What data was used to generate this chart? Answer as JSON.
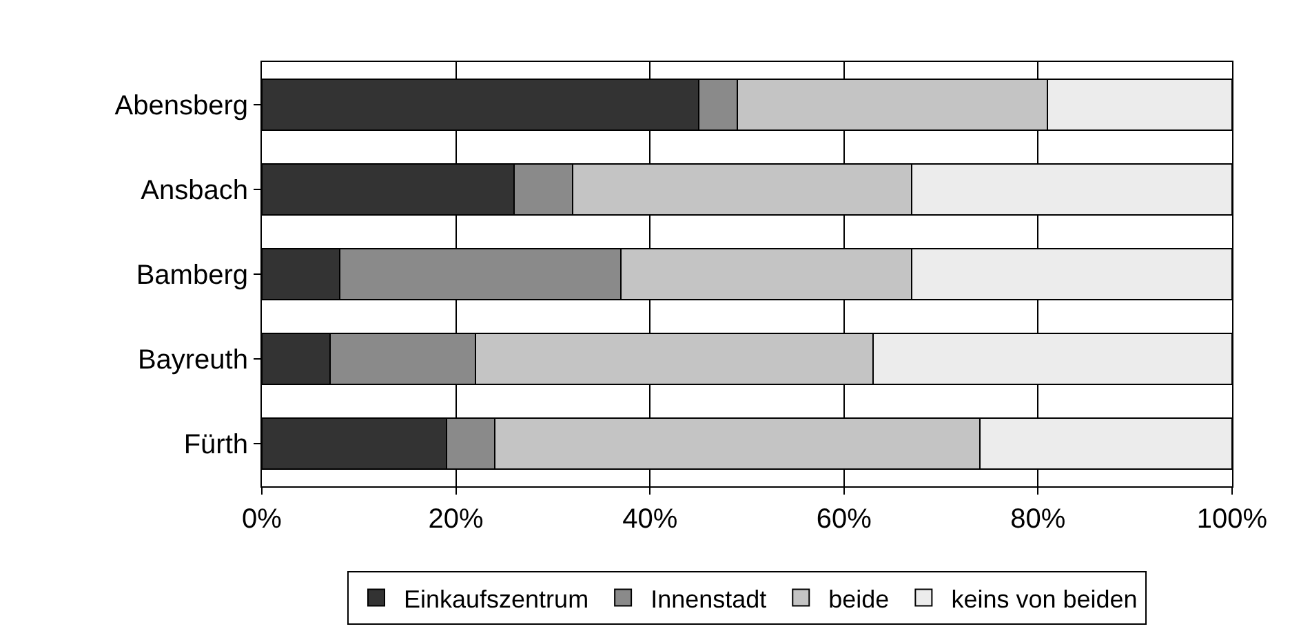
{
  "chart_data": {
    "type": "bar",
    "orientation": "horizontal",
    "stacked": true,
    "categories": [
      "Abensberg",
      "Ansbach",
      "Bamberg",
      "Bayreuth",
      "Fürth"
    ],
    "series": [
      {
        "name": "Einkaufszentrum",
        "color": "#333333",
        "values": [
          45,
          26,
          8,
          7,
          19
        ]
      },
      {
        "name": "Innenstadt",
        "color": "#8a8a8a",
        "values": [
          4,
          6,
          29,
          15,
          5
        ]
      },
      {
        "name": "beide",
        "color": "#c4c4c4",
        "values": [
          32,
          35,
          30,
          41,
          50
        ]
      },
      {
        "name": "keins von beiden",
        "color": "#ececec",
        "values": [
          19,
          33,
          33,
          37,
          26
        ]
      }
    ],
    "xlim": [
      0,
      100
    ],
    "xticks": [
      {
        "value": 0,
        "label": "0%"
      },
      {
        "value": 20,
        "label": "20%"
      },
      {
        "value": 40,
        "label": "40%"
      },
      {
        "value": 60,
        "label": "60%"
      },
      {
        "value": 80,
        "label": "80%"
      },
      {
        "value": 100,
        "label": "100%"
      }
    ],
    "grid": "x",
    "legend": "bottom"
  }
}
